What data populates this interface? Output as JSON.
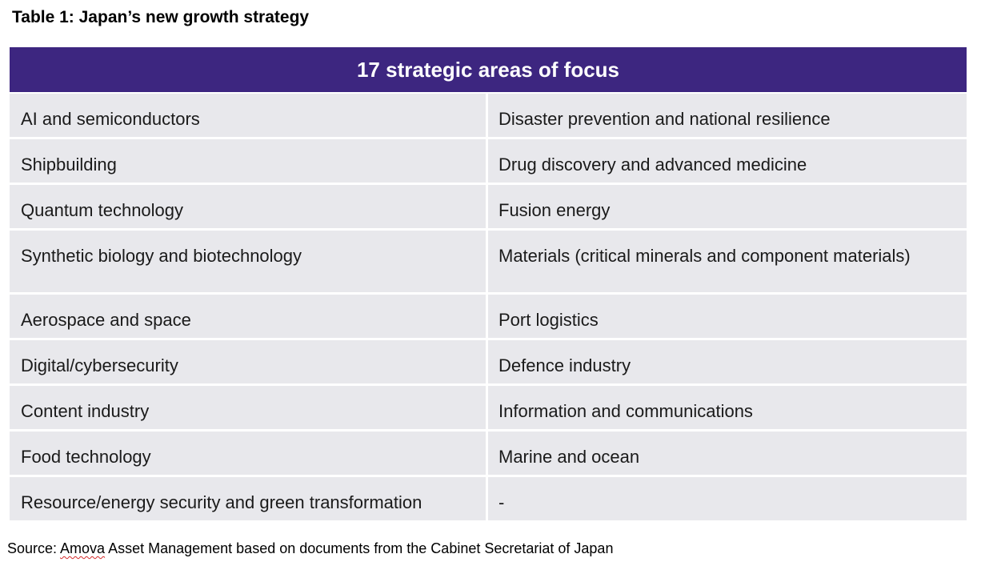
{
  "title": "Table 1: Japan’s new growth strategy",
  "table": {
    "header": "17 strategic areas of focus",
    "rows": [
      {
        "left": "AI and semiconductors",
        "right": "Disaster prevention and national resilience"
      },
      {
        "left": "Shipbuilding",
        "right": "Drug discovery and advanced medicine"
      },
      {
        "left": "Quantum technology",
        "right": "Fusion energy"
      },
      {
        "left": "Synthetic biology and biotechnology",
        "right": "Materials (critical minerals and component materials)"
      },
      {
        "left": "Aerospace and space",
        "right": "Port logistics"
      },
      {
        "left": "Digital/cybersecurity",
        "right": "Defence industry"
      },
      {
        "left": "Content industry",
        "right": "Information and communications"
      },
      {
        "left": "Food technology",
        "right": "Marine and ocean"
      },
      {
        "left": "Resource/energy security and green transformation",
        "right": "-"
      }
    ]
  },
  "source": {
    "prefix": "Source: ",
    "flagged_word": "Amova",
    "suffix": " Asset Management based on documents from the Cabinet Secretariat of Japan"
  },
  "colors": {
    "header_bg": "#3d2680",
    "row_bg": "#e8e8ec",
    "spellcheck_underline": "#d62b2b"
  }
}
